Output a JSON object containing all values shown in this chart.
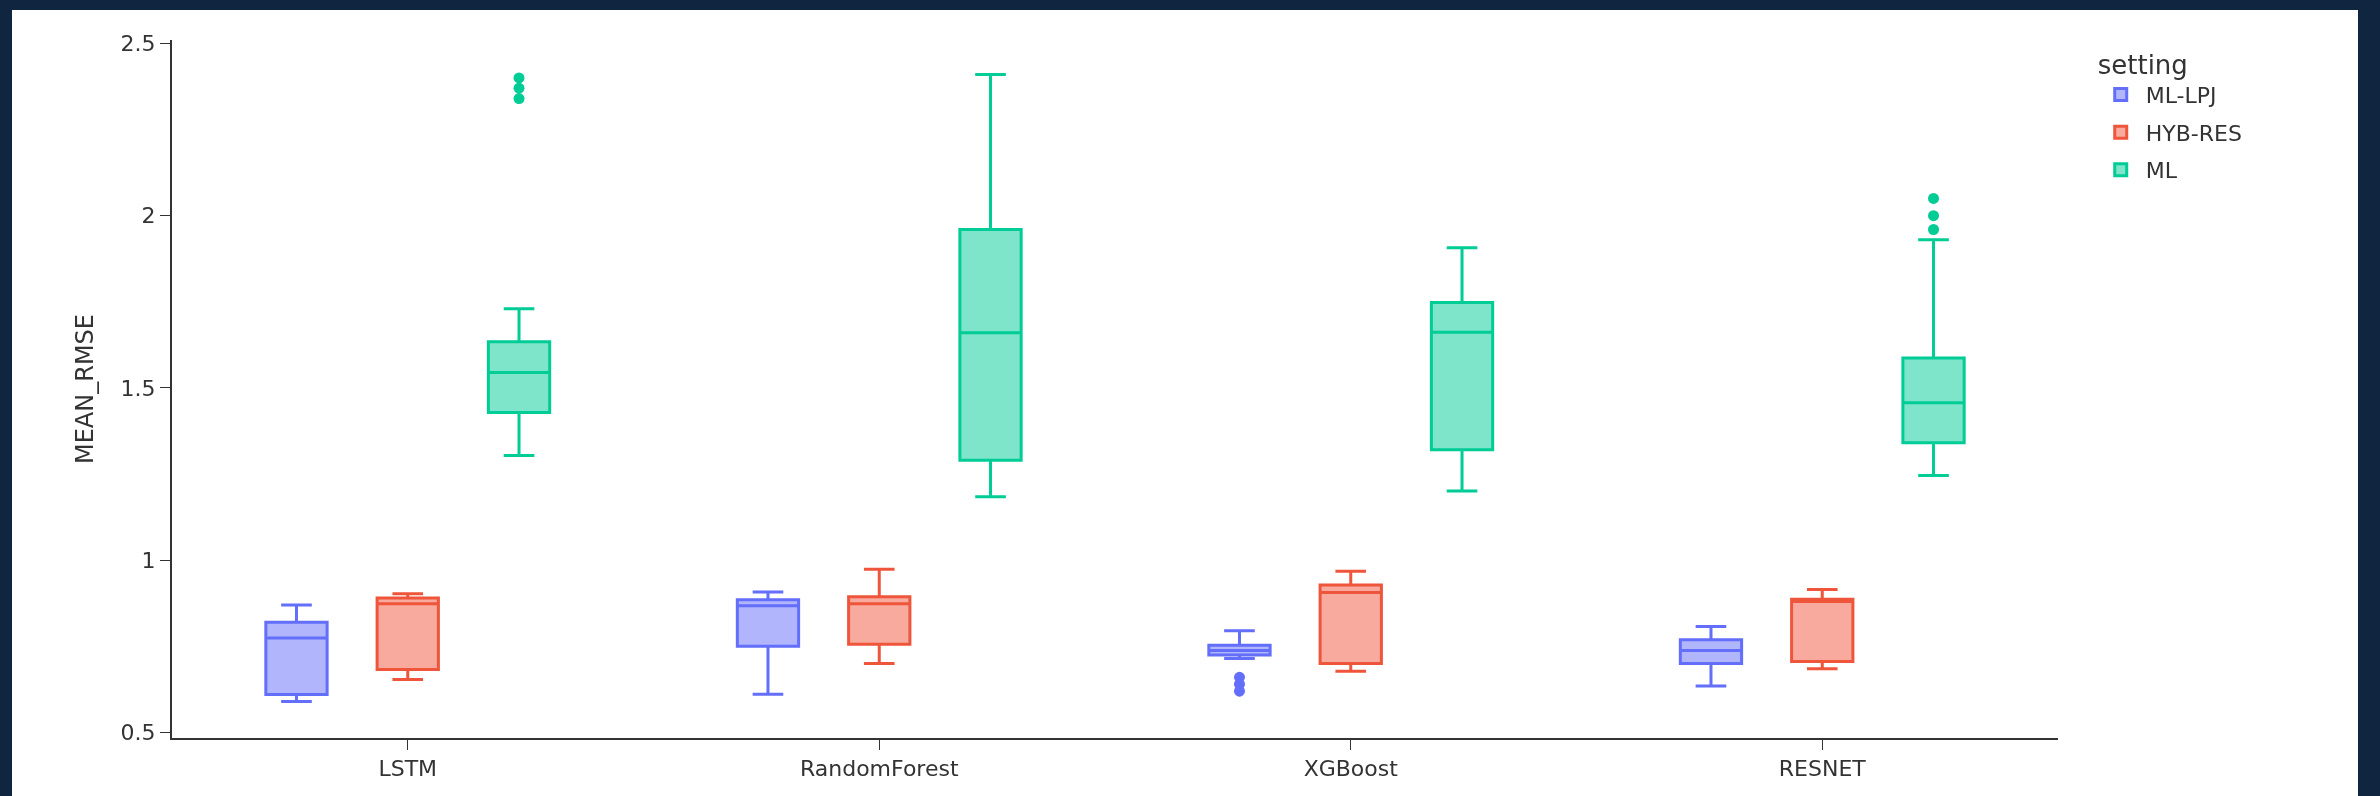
{
  "chart_data": {
    "type": "box",
    "ylabel": "MEAN_RMSE",
    "legend_title": "setting",
    "legend": "top right",
    "grid": false,
    "categories": [
      "LSTM",
      "RandomForest",
      "XGBoost",
      "RESNET"
    ],
    "ylim": [
      0.484,
      2.51
    ],
    "yticks": [
      0.5,
      1,
      1.5,
      2,
      2.5
    ],
    "series": [
      {
        "name": "ML-LPJ",
        "color": "#636efa",
        "boxes": [
          {
            "low": 0.59,
            "q1": 0.61,
            "median": 0.774,
            "q3": 0.82,
            "high": 0.87
          },
          {
            "low": 0.611,
            "q1": 0.75,
            "median": 0.868,
            "q3": 0.885,
            "high": 0.908
          },
          {
            "low": 0.715,
            "q1": 0.725,
            "median": 0.738,
            "q3": 0.753,
            "high": 0.795,
            "outliers": [
              0.66,
              0.64,
              0.62
            ]
          },
          {
            "low": 0.635,
            "q1": 0.7,
            "median": 0.738,
            "q3": 0.769,
            "high": 0.808
          }
        ]
      },
      {
        "name": "HYB-RES",
        "color": "#ef553b",
        "boxes": [
          {
            "low": 0.654,
            "q1": 0.683,
            "median": 0.874,
            "q3": 0.89,
            "high": 0.903
          },
          {
            "low": 0.7,
            "q1": 0.756,
            "median": 0.874,
            "q3": 0.894,
            "high": 0.974
          },
          {
            "low": 0.678,
            "q1": 0.7,
            "median": 0.906,
            "q3": 0.928,
            "high": 0.968
          },
          {
            "low": 0.685,
            "q1": 0.706,
            "median": 0.88,
            "q3": 0.887,
            "high": 0.915
          }
        ]
      },
      {
        "name": "ML",
        "color": "#00cc96",
        "boxes": [
          {
            "low": 1.304,
            "q1": 1.429,
            "median": 1.545,
            "q3": 1.634,
            "high": 1.73,
            "outliers": [
              2.4,
              2.37,
              2.34
            ]
          },
          {
            "low": 1.184,
            "q1": 1.29,
            "median": 1.66,
            "q3": 1.96,
            "high": 2.41
          },
          {
            "low": 1.201,
            "q1": 1.321,
            "median": 1.662,
            "q3": 1.748,
            "high": 1.907
          },
          {
            "low": 1.246,
            "q1": 1.341,
            "median": 1.457,
            "q3": 1.587,
            "high": 1.93,
            "outliers": [
              2.05,
              2.0,
              1.96
            ]
          }
        ]
      }
    ]
  }
}
